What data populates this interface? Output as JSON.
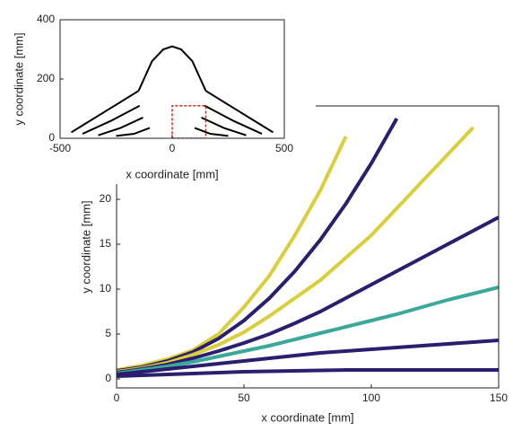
{
  "chart_data": [
    {
      "type": "line",
      "xlabel": "x coordinate [mm]",
      "ylabel": "y coordinate [mm]",
      "xlim": [
        -500,
        500
      ],
      "ylim": [
        0,
        400
      ],
      "xticks": [
        -500,
        0,
        500
      ],
      "yticks": [
        0,
        200,
        400
      ],
      "series": [
        {
          "color": "#000000",
          "x": [
            -150,
            -90,
            -40,
            0,
            40,
            90,
            150
          ],
          "values": [
            160,
            260,
            300,
            310,
            300,
            260,
            160
          ]
        },
        {
          "color": "#000000",
          "x": [
            -150,
            -300,
            -450
          ],
          "values": [
            160,
            90,
            20
          ]
        },
        {
          "color": "#000000",
          "x": [
            -145,
            -270,
            -400
          ],
          "values": [
            110,
            60,
            15
          ]
        },
        {
          "color": "#000000",
          "x": [
            -130,
            -230,
            -330
          ],
          "values": [
            70,
            35,
            10
          ]
        },
        {
          "color": "#000000",
          "x": [
            -100,
            -170,
            -250
          ],
          "values": [
            35,
            15,
            8
          ]
        },
        {
          "color": "#000000",
          "x": [
            150,
            300,
            450
          ],
          "values": [
            160,
            90,
            20
          ]
        },
        {
          "color": "#000000",
          "x": [
            145,
            270,
            400
          ],
          "values": [
            110,
            60,
            15
          ]
        },
        {
          "color": "#000000",
          "x": [
            130,
            230,
            330
          ],
          "values": [
            70,
            35,
            10
          ]
        },
        {
          "color": "#000000",
          "x": [
            100,
            170,
            250
          ],
          "values": [
            35,
            15,
            8
          ]
        },
        {
          "color": "#e02020",
          "dashed": true,
          "x": [
            0,
            150,
            150,
            0,
            0
          ],
          "values": [
            0,
            0,
            110,
            110,
            0
          ]
        }
      ]
    },
    {
      "type": "line",
      "xlabel": "x coordinate [mm]",
      "ylabel": "y coordinate [mm]",
      "xlim": [
        0,
        150
      ],
      "ylim": [
        -1,
        30.4
      ],
      "xticks": [
        0,
        50,
        100,
        150
      ],
      "yticks": [
        0,
        5,
        10,
        15,
        20
      ],
      "x": [
        0,
        10,
        20,
        30,
        40,
        50,
        60,
        70,
        80,
        90,
        100,
        110,
        120,
        130,
        140,
        150
      ],
      "series": [
        {
          "color": "#d9cf3c",
          "values": [
            1,
            1.5,
            2.2,
            3.2,
            5,
            8,
            11.5,
            16,
            21,
            27,
            null,
            null,
            null,
            null,
            null,
            null
          ]
        },
        {
          "color": "#2b1e6e",
          "values": [
            0.9,
            1.3,
            2,
            3,
            4.5,
            6.5,
            9,
            12,
            15.5,
            19.5,
            24,
            29,
            null,
            null,
            null,
            null
          ]
        },
        {
          "color": "#d9cf3c",
          "values": [
            0.8,
            1.2,
            1.8,
            2.7,
            3.8,
            5.2,
            7,
            9,
            11,
            13.5,
            16,
            19,
            22,
            25,
            28,
            null
          ]
        },
        {
          "color": "#2b1e6e",
          "values": [
            0.7,
            1.1,
            1.6,
            2.3,
            3.1,
            4,
            5,
            6.2,
            7.5,
            9,
            10.5,
            12,
            13.5,
            15,
            16.5,
            18
          ]
        },
        {
          "color": "#3aa89a",
          "values": [
            0.6,
            1,
            1.4,
            1.9,
            2.5,
            3.1,
            3.7,
            4.4,
            5.1,
            5.8,
            6.5,
            7.2,
            8,
            8.8,
            9.5,
            10.2
          ]
        },
        {
          "color": "#2b1e6e",
          "values": [
            0.5,
            0.8,
            1.1,
            1.4,
            1.7,
            2,
            2.3,
            2.6,
            2.9,
            3.1,
            3.3,
            3.5,
            3.7,
            3.9,
            4.1,
            4.3
          ]
        },
        {
          "color": "#2b1e6e",
          "values": [
            0.3,
            0.4,
            0.5,
            0.6,
            0.7,
            0.8,
            0.85,
            0.9,
            0.95,
            1,
            1,
            1,
            1,
            1,
            1,
            1
          ]
        }
      ]
    }
  ]
}
